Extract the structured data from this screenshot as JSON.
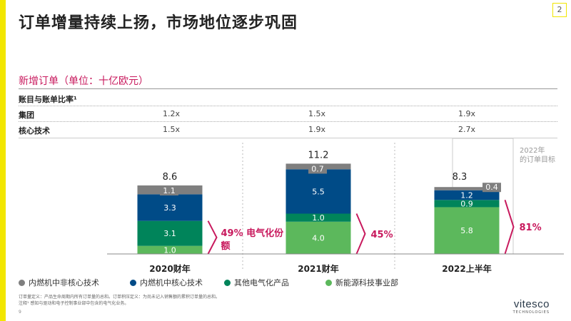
{
  "page_number_box": "2",
  "title": "订单增量持续上扬，市场地位逐步巩固",
  "subtitle": "新增订单（单位：十亿欧元）",
  "ratio_table": {
    "header": "账目与账单比率¹",
    "rows": [
      {
        "label": "集团",
        "values": [
          "1.2x",
          "1.5x",
          "1.9x"
        ]
      },
      {
        "label": "核心技术",
        "values": [
          "1.5x",
          "1.9x",
          "2.7x"
        ]
      }
    ]
  },
  "target_label": "2022年的订单目标",
  "colors": {
    "accent_yellow": "#f2e600",
    "magenta": "#c8195d",
    "gray": "#7f7f7f",
    "dark_blue": "#004b87",
    "dark_green": "#00845a",
    "light_green": "#5cb85c"
  },
  "chart_data": {
    "type": "bar",
    "stacked": true,
    "categories": [
      "2020财年",
      "2021财年",
      "2022上半年"
    ],
    "series": [
      {
        "name": "新能源科技事业部",
        "color": "#5cb85c",
        "values": [
          1.0,
          4.0,
          5.8
        ]
      },
      {
        "name": "其他电气化产品",
        "color": "#00845a",
        "values": [
          3.1,
          1.0,
          0.9
        ]
      },
      {
        "name": "内燃机中核心技术",
        "color": "#004b87",
        "values": [
          3.3,
          5.5,
          1.2
        ]
      },
      {
        "name": "内燃机中非核心技术",
        "color": "#7f7f7f",
        "values": [
          1.1,
          0.7,
          0.4
        ]
      }
    ],
    "totals": [
      "8.6",
      "11.2",
      "8.3"
    ],
    "electrification_share": [
      "49% 电气化份额",
      "45%",
      "81%"
    ],
    "legend_order": [
      "内燃机中非核心技术",
      "内燃机中核心技术",
      "其他电气化产品",
      "新能源科技事业部"
    ],
    "ylim": [
      0,
      12.5
    ]
  },
  "footnote_lines": [
    "订单量定义：产品生命周期内所有订单量的总和。订单积压定义：为尚未记入销售额的累积订单量的总和。",
    "注释¹ 感知与驱动和电子控制事业部中包含的电气化业务。"
  ],
  "page_number": "9",
  "logo": {
    "word": "vitesco",
    "sub": "TECHNOLOGIES"
  }
}
